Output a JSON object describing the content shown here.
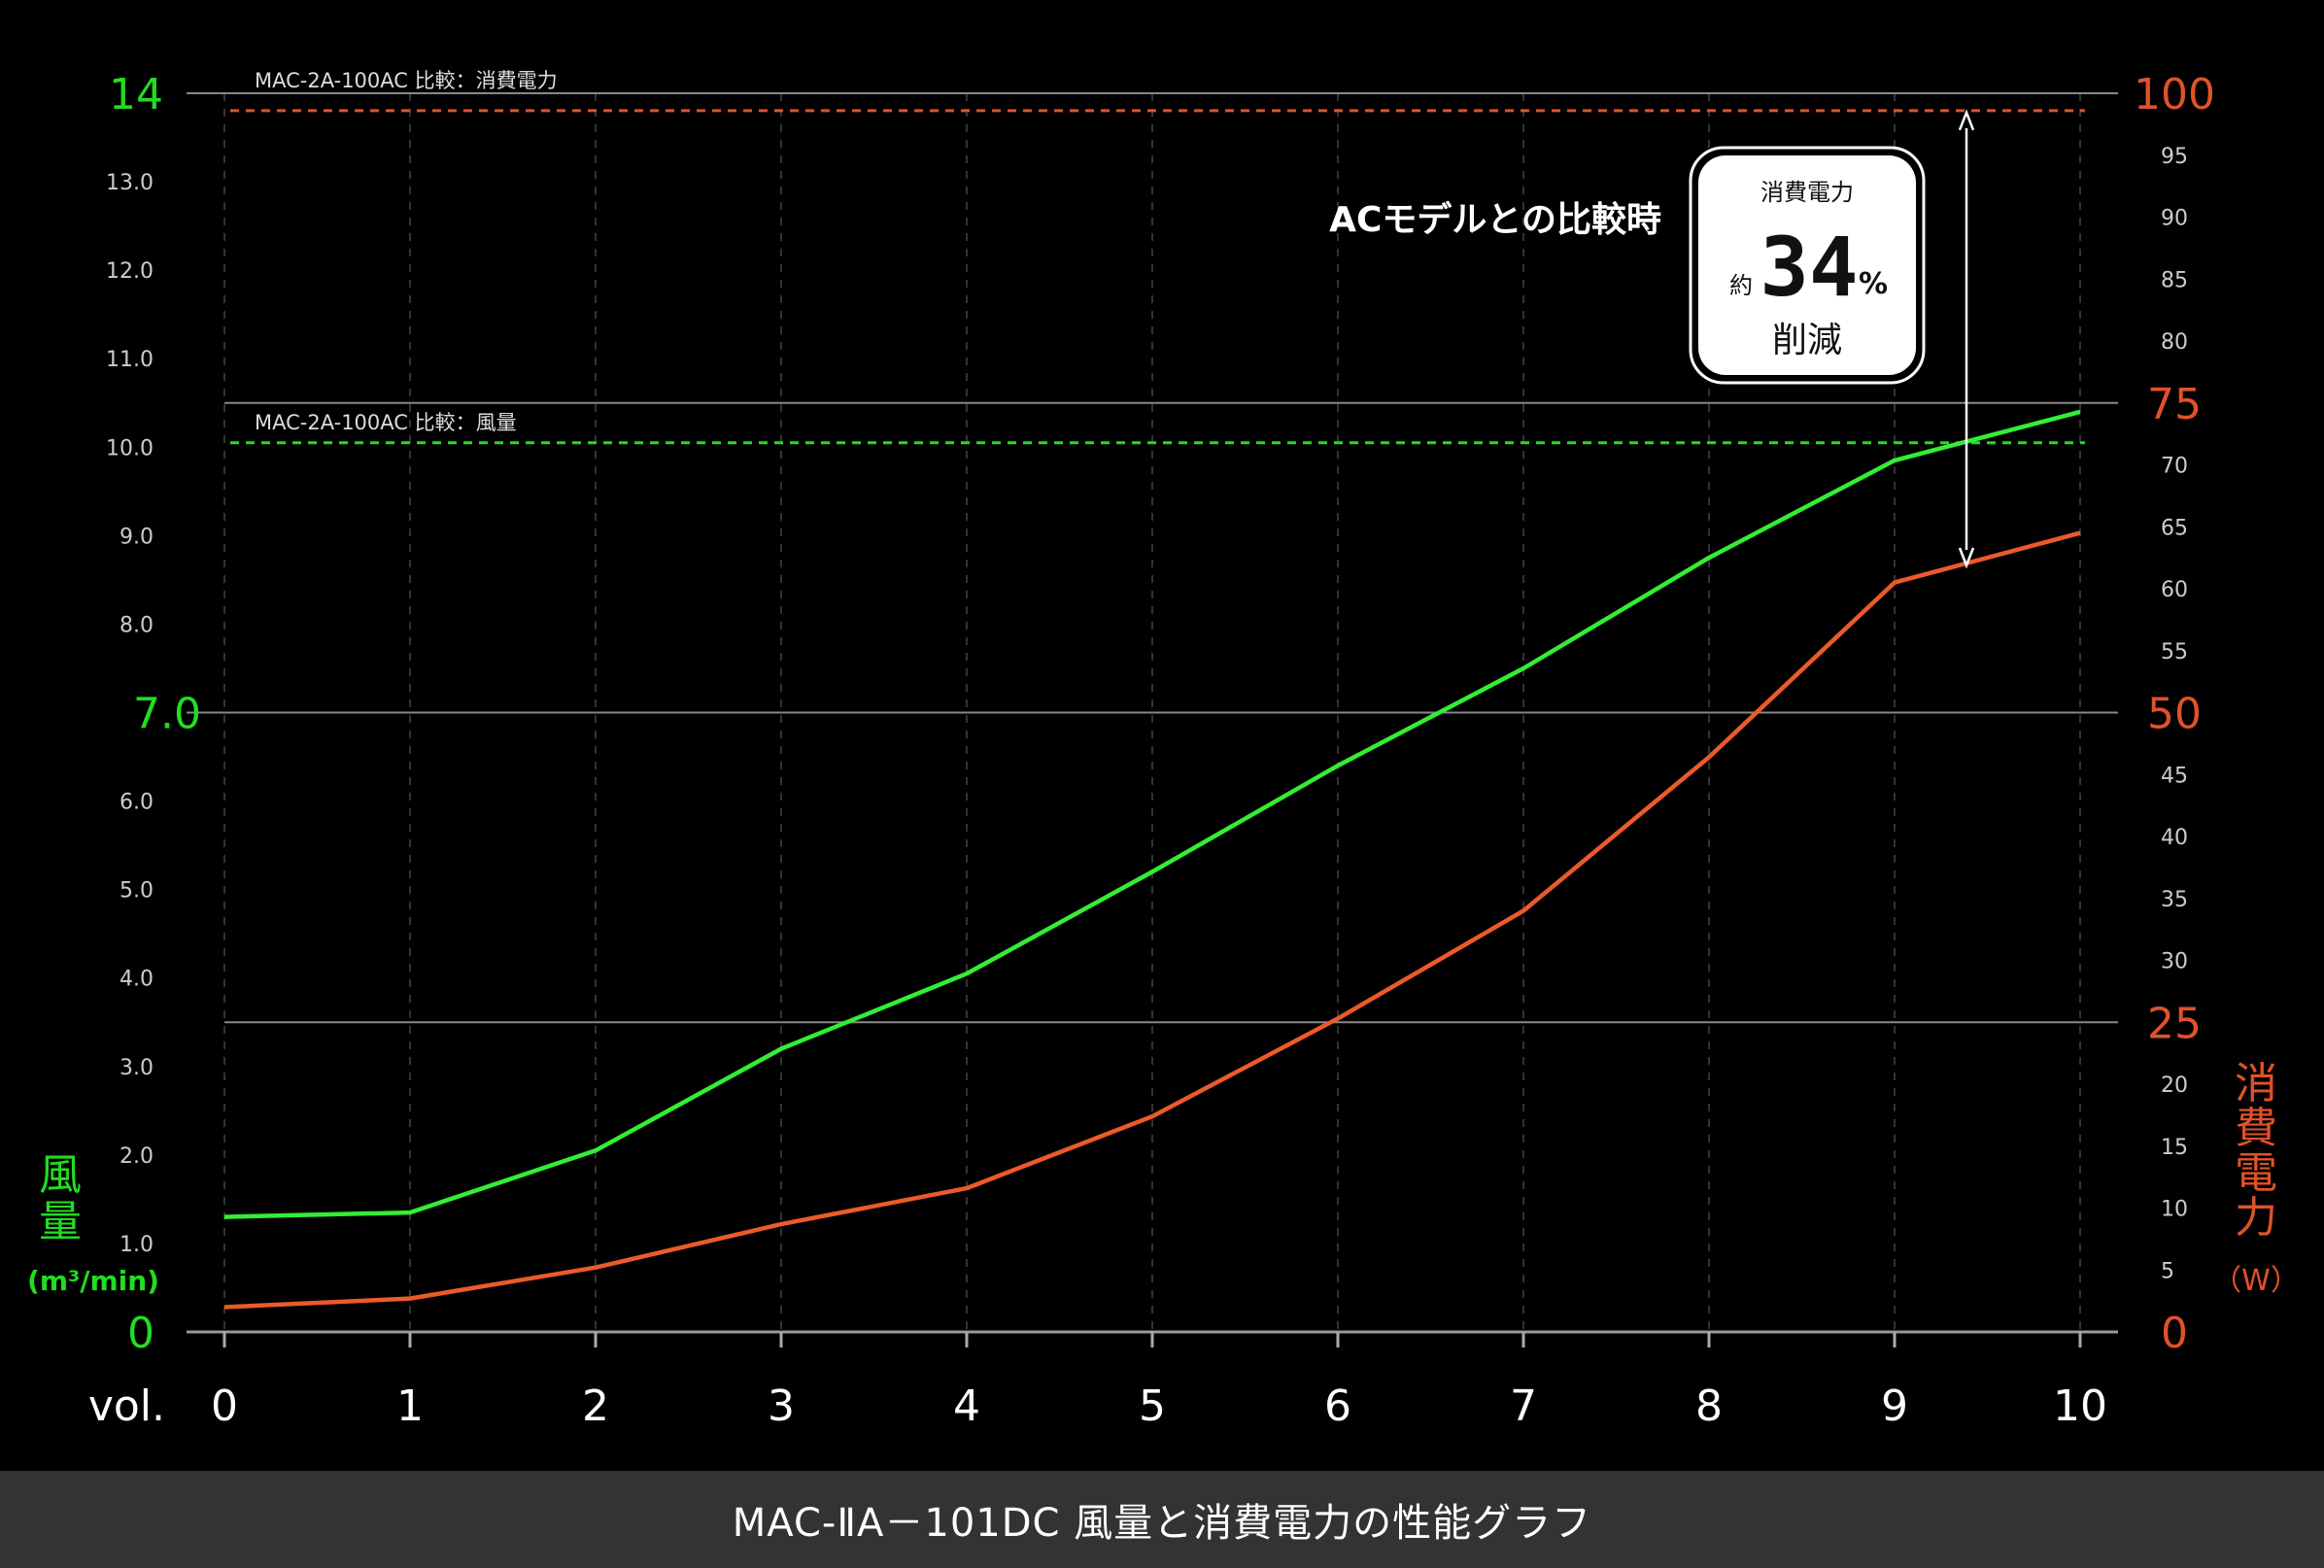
{
  "chart_data": {
    "type": "line",
    "title": "MAC-ⅡA－101DC 風量と消費電力の性能グラフ",
    "xlabel": "vol.",
    "x": [
      0,
      1,
      2,
      3,
      4,
      5,
      6,
      7,
      8,
      9,
      10
    ],
    "x_tick_labels": [
      "0",
      "1",
      "2",
      "3",
      "4",
      "5",
      "6",
      "7",
      "8",
      "9",
      "10"
    ],
    "grid": true,
    "left_axis": {
      "label_chars": [
        "風",
        "量"
      ],
      "unit": "(m³/min)",
      "range": [
        0,
        14
      ],
      "major_ticks": [
        "0",
        "7.0",
        "14"
      ],
      "minor_ticks": [
        "1.0",
        "2.0",
        "3.0",
        "4.0",
        "5.0",
        "6.0",
        "8.0",
        "9.0",
        "10.0",
        "11.0",
        "12.0",
        "13.0"
      ],
      "color": "#22dd22"
    },
    "right_axis": {
      "label_chars": [
        "消",
        "費",
        "電",
        "力"
      ],
      "unit": "（W）",
      "range": [
        0,
        100
      ],
      "major_ticks": [
        "0",
        "25",
        "50",
        "75",
        "100"
      ],
      "minor_ticks": [
        "5",
        "10",
        "15",
        "20",
        "30",
        "35",
        "40",
        "45",
        "55",
        "60",
        "65",
        "70",
        "80",
        "85",
        "90",
        "95"
      ],
      "color": "#e0522a"
    },
    "series": [
      {
        "axis": "left",
        "color": "#33ee33",
        "values": [
          1.3,
          1.35,
          2.05,
          3.2,
          4.05,
          5.2,
          6.4,
          7.5,
          8.75,
          9.85,
          10.4
        ]
      },
      {
        "axis": "right",
        "color": "#ec5a2a",
        "values": [
          2,
          2.7,
          5.2,
          8.7,
          11.6,
          17.4,
          25.3,
          34,
          46.4,
          60.5,
          64.5
        ]
      }
    ],
    "reference_lines": [
      {
        "axis": "right",
        "value": 98.6,
        "color": "#e0522a",
        "label": "MAC-2A-100AC 比較：消費電力"
      },
      {
        "axis": "left",
        "value": 10.05,
        "color": "#22dd22",
        "label": "MAC-2A-100AC 比較：風量"
      }
    ],
    "callout": {
      "heading": "ACモデルとの比較時",
      "line1": "消費電力",
      "prefix": "約",
      "number": "34",
      "percent": "%",
      "line3": "削減"
    }
  }
}
